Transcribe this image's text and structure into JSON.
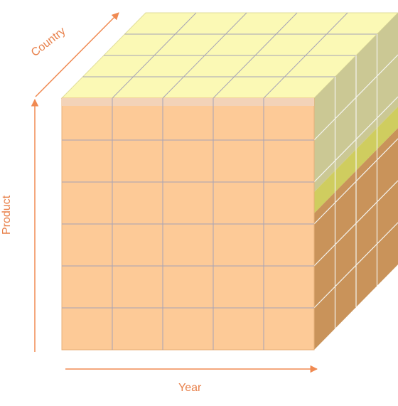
{
  "axes": {
    "year": "Year",
    "product": "Product",
    "country": "Country"
  },
  "grid": {
    "front_columns": 5,
    "front_rows": 6,
    "depth_layers": 4
  },
  "colors": {
    "front_face": "#fdca97",
    "front_top_band": "#f3d3b8",
    "top_face": "#fbf9b5",
    "side_face_upper": "#cbc894",
    "side_face_band": "#cfcd5f",
    "side_face_lower": "#c9935a",
    "grid_line": "#a6a3b6",
    "arrow": "#f08a52",
    "label": "#e8804a"
  }
}
